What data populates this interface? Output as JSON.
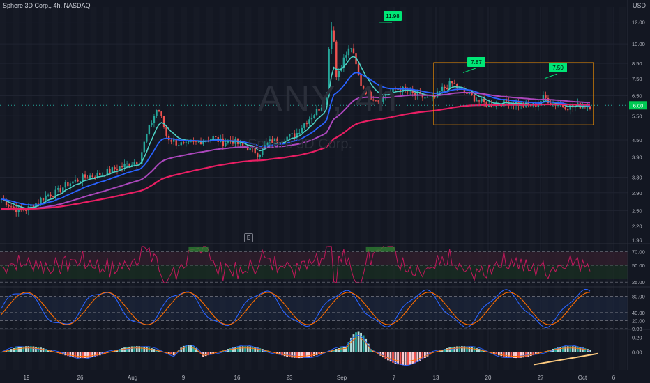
{
  "header": {
    "title": "Sphere 3D Corp., 4h, NASDAQ",
    "currency": "USD"
  },
  "watermark": {
    "symbol": "ANY, 4h",
    "name": "Sphere 3D Corp."
  },
  "colors": {
    "bg": "#131722",
    "grid": "#1f2330",
    "text": "#b2b5be",
    "up": "#26a69a",
    "down": "#ef5350",
    "ema_fast": "#4dd0c4",
    "ema_mid": "#2962ff",
    "ema_slow": "#ab47bc",
    "ema_long": "#e91e63",
    "highlight_box": "#ff9800",
    "label_green": "#00e676",
    "rsi": "#c2185b",
    "stoch_k": "#2962ff",
    "stoch_d": "#ff6d00",
    "trend_line": "#ffcc80"
  },
  "chart_data": [
    {
      "type": "candlestick",
      "title": "Sphere 3D Corp., 4h, NASDAQ",
      "y_scale": "log",
      "y_ticks": [
        "12.00",
        "10.00",
        "8.50",
        "7.50",
        "6.50",
        "5.50",
        "4.50",
        "3.90",
        "3.30",
        "2.90",
        "2.50",
        "2.20",
        "1.96"
      ],
      "x_ticks": [
        "19",
        "26",
        "Aug",
        "9",
        "16",
        "23",
        "Sep",
        "7",
        "13",
        "20",
        "27",
        "Oct",
        "6"
      ],
      "current_price": "6.00",
      "annotations": [
        "11.98",
        "7.87",
        "7.50"
      ],
      "summary_closes": [
        2.75,
        2.6,
        2.5,
        2.55,
        2.7,
        2.85,
        2.9,
        3.1,
        3.2,
        3.3,
        3.35,
        3.4,
        3.5,
        3.6,
        3.7,
        3.8,
        4.9,
        5.9,
        4.6,
        4.4,
        4.3,
        4.4,
        4.5,
        4.6,
        4.4,
        4.5,
        4.3,
        4.2,
        4.0,
        4.4,
        4.5,
        4.6,
        4.7,
        5.2,
        5.6,
        6.1,
        7.0,
        8.5,
        9.8,
        7.2,
        6.5,
        6.3,
        6.6,
        6.9,
        6.8,
        6.5,
        6.4,
        6.3,
        6.9,
        7.2,
        6.8,
        6.5,
        6.2,
        6.0,
        6.1,
        6.2,
        6.1,
        6.0,
        6.0,
        6.4,
        6.1,
        6.0,
        5.9,
        6.0,
        6.0
      ]
    },
    {
      "type": "line",
      "name": "RSI",
      "y_ticks": [
        "70.00",
        "50.00",
        "25.00"
      ],
      "ylim": [
        20,
        80
      ]
    },
    {
      "type": "line",
      "name": "Stochastic",
      "y_ticks": [
        "80.00",
        "40.00",
        "20.00",
        "0.00"
      ],
      "ylim": [
        0,
        100
      ]
    },
    {
      "type": "bar",
      "name": "MACD histogram",
      "y_ticks": [
        "0.20",
        "0.00"
      ]
    }
  ]
}
